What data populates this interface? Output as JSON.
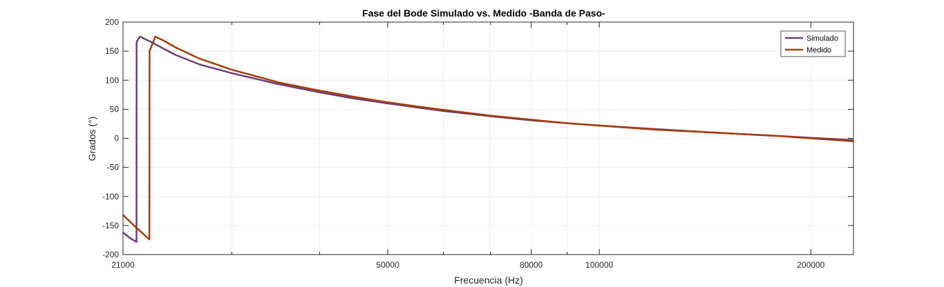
{
  "chart_data": {
    "type": "line",
    "title": "Fase del Bode Simulado vs. Medido -Banda de Paso-",
    "xlabel": "Frecuencia (Hz)",
    "ylabel": "Grados (°)",
    "xscale": "log",
    "xlim": [
      21000,
      230000
    ],
    "ylim": [
      -200,
      200
    ],
    "x_ticks": [
      21000,
      50000,
      80000,
      100000,
      200000
    ],
    "x_tick_labels": [
      "21000",
      "50000",
      "80000",
      "100000",
      "200000"
    ],
    "x_minor_gridlines": [
      30000,
      40000,
      60000,
      70000,
      90000
    ],
    "y_ticks": [
      -200,
      -150,
      -100,
      -50,
      0,
      50,
      100,
      150,
      200
    ],
    "y_tick_labels": [
      "-200",
      "-150",
      "-100",
      "-50",
      "0",
      "50",
      "100",
      "150",
      "200"
    ],
    "grid": true,
    "legend_position": "top-right",
    "series": [
      {
        "name": "Simulado",
        "color": "#6b3f73",
        "points": [
          [
            21000,
            -162
          ],
          [
            21500,
            -172
          ],
          [
            21950,
            -178
          ],
          [
            21960,
            166
          ],
          [
            22200,
            175
          ],
          [
            23000,
            166
          ],
          [
            24000,
            154
          ],
          [
            25000,
            143
          ],
          [
            27000,
            127
          ],
          [
            30000,
            112
          ],
          [
            35000,
            93
          ],
          [
            40000,
            79
          ],
          [
            45000,
            68
          ],
          [
            50000,
            60
          ],
          [
            55000,
            53
          ],
          [
            60000,
            47
          ],
          [
            70000,
            38
          ],
          [
            80000,
            31
          ],
          [
            90000,
            26
          ],
          [
            100000,
            22
          ],
          [
            120000,
            16
          ],
          [
            150000,
            9
          ],
          [
            180000,
            4
          ],
          [
            200000,
            1
          ],
          [
            230000,
            -3
          ]
        ]
      },
      {
        "name": "Medido",
        "color": "#a33c0a",
        "points": [
          [
            21000,
            -132
          ],
          [
            22000,
            -155
          ],
          [
            22900,
            -174
          ],
          [
            22910,
            150
          ],
          [
            23350,
            175
          ],
          [
            24000,
            168
          ],
          [
            25000,
            156
          ],
          [
            27000,
            137
          ],
          [
            30000,
            118
          ],
          [
            35000,
            96
          ],
          [
            40000,
            82
          ],
          [
            45000,
            71
          ],
          [
            50000,
            62
          ],
          [
            55000,
            55
          ],
          [
            60000,
            49
          ],
          [
            70000,
            39
          ],
          [
            80000,
            32
          ],
          [
            90000,
            26
          ],
          [
            100000,
            22
          ],
          [
            120000,
            15
          ],
          [
            150000,
            9
          ],
          [
            180000,
            4
          ],
          [
            200000,
            0
          ],
          [
            230000,
            -5
          ]
        ]
      }
    ]
  }
}
